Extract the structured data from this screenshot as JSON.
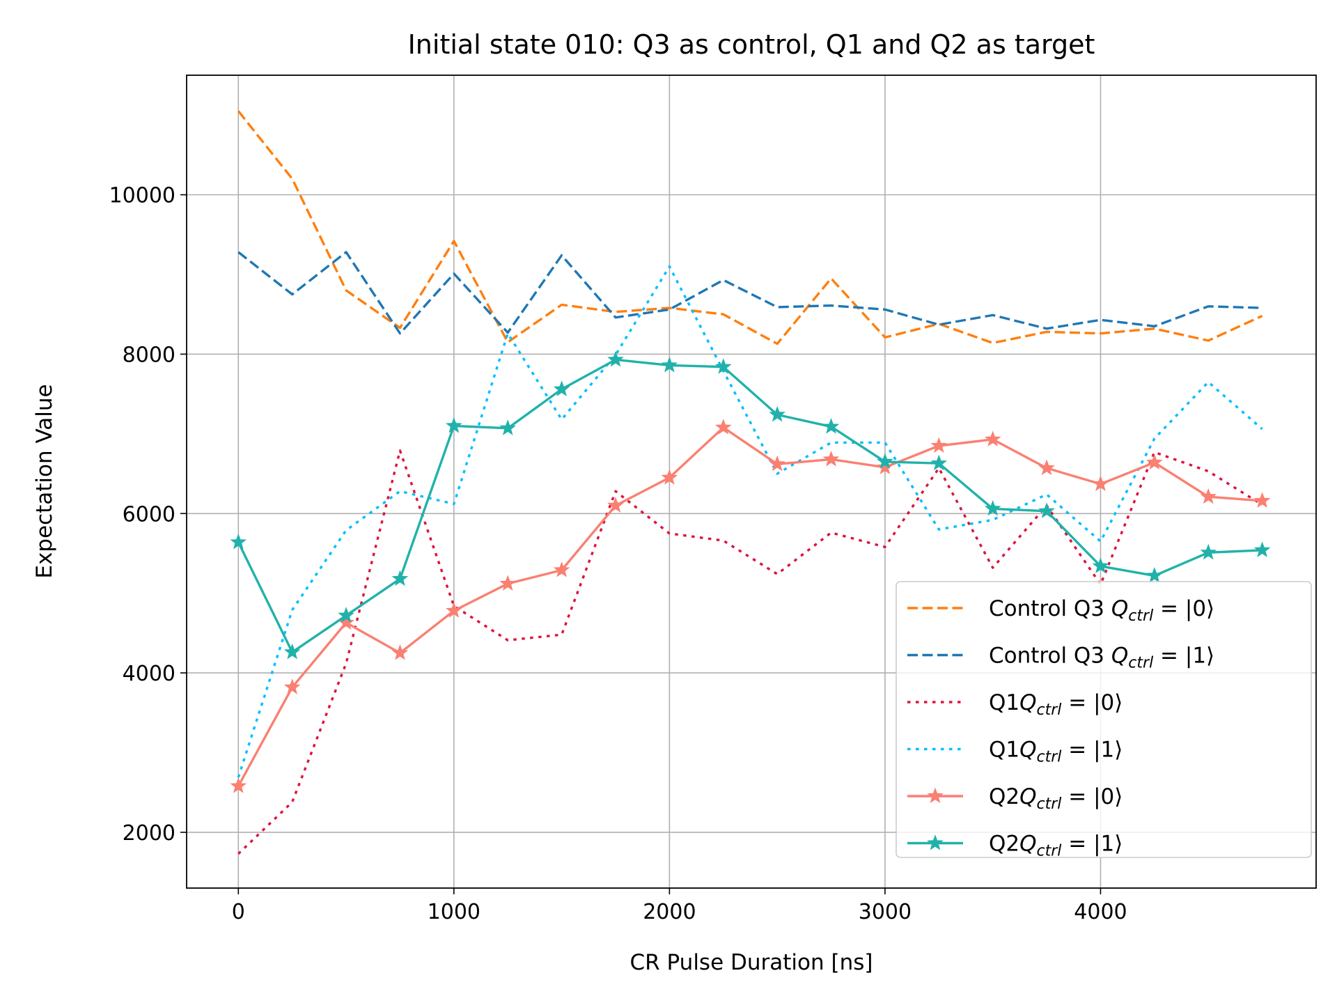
{
  "chart_data": {
    "type": "line",
    "title": "Initial state 010: Q3 as control, Q1 and Q2 as target",
    "xlabel": "CR Pulse Duration [ns]",
    "ylabel": "Expectation Value",
    "xlim": [
      -240,
      5000
    ],
    "ylim": [
      1300,
      11500
    ],
    "xticks": [
      0,
      1000,
      2000,
      3000,
      4000
    ],
    "yticks": [
      2000,
      4000,
      6000,
      8000,
      10000
    ],
    "xtick_labels": [
      "0",
      "1000",
      "2000",
      "3000",
      "4000"
    ],
    "ytick_labels": [
      "2000",
      "4000",
      "6000",
      "8000",
      "10000"
    ],
    "grid": true,
    "legend_position": "lower-right",
    "x": [
      0,
      250,
      500,
      750,
      1000,
      1250,
      1500,
      1750,
      2000,
      2250,
      2500,
      2750,
      3000,
      3250,
      3500,
      3750,
      4000,
      4250,
      4500,
      4750
    ],
    "series": [
      {
        "label": {
          "pre": "Control Q3 ",
          "q": "Q",
          "sub": "ctrl",
          "ket": " = |0⟩"
        },
        "color": "#ff7f0e",
        "dash": "dashed",
        "marker": "none",
        "values": [
          11050,
          10200,
          8800,
          8330,
          9420,
          8150,
          8620,
          8530,
          8580,
          8500,
          8130,
          8950,
          8210,
          8380,
          8140,
          8280,
          8260,
          8320,
          8170,
          8480
        ]
      },
      {
        "label": {
          "pre": "Control Q3 ",
          "q": "Q",
          "sub": "ctrl",
          "ket": " = |1⟩"
        },
        "color": "#1f77b4",
        "dash": "dashed",
        "marker": "none",
        "values": [
          9280,
          8750,
          9280,
          8260,
          9010,
          8270,
          9240,
          8460,
          8560,
          8930,
          8590,
          8610,
          8560,
          8370,
          8490,
          8320,
          8430,
          8350,
          8600,
          8580
        ]
      },
      {
        "label": {
          "pre": "Q1",
          "q": "Q",
          "sub": "ctrl",
          "ket": " = |0⟩"
        },
        "color": "#dc143c",
        "dash": "dotted",
        "marker": "none",
        "values": [
          1730,
          2380,
          4120,
          6790,
          4840,
          4410,
          4480,
          6280,
          5750,
          5660,
          5240,
          5760,
          5580,
          6570,
          5320,
          6100,
          5110,
          6770,
          6530,
          6110
        ]
      },
      {
        "label": {
          "pre": "Q1",
          "q": "Q",
          "sub": "ctrl",
          "ket": " = |1⟩"
        },
        "color": "#00bfff",
        "dash": "dotted",
        "marker": "none",
        "values": [
          2690,
          4790,
          5790,
          6280,
          6120,
          8260,
          7180,
          7990,
          9100,
          7790,
          6500,
          6890,
          6890,
          5800,
          5920,
          6240,
          5650,
          6940,
          7650,
          7060
        ]
      },
      {
        "label": {
          "pre": "Q2",
          "q": "Q",
          "sub": "ctrl",
          "ket": " = |0⟩"
        },
        "color": "#fa8072",
        "dash": "solid",
        "marker": "star",
        "values": [
          2580,
          3820,
          4630,
          4250,
          4780,
          5120,
          5290,
          6100,
          6450,
          7080,
          6620,
          6680,
          6580,
          6850,
          6930,
          6570,
          6370,
          6640,
          6210,
          6160
        ]
      },
      {
        "label": {
          "pre": "Q2",
          "q": "Q",
          "sub": "ctrl",
          "ket": " = |1⟩"
        },
        "color": "#20b2aa",
        "dash": "solid",
        "marker": "star",
        "values": [
          5640,
          4260,
          4720,
          5180,
          7100,
          7070,
          7560,
          7930,
          7860,
          7840,
          7240,
          7090,
          6650,
          6630,
          6060,
          6030,
          5340,
          5220,
          5510,
          5540
        ]
      }
    ]
  }
}
